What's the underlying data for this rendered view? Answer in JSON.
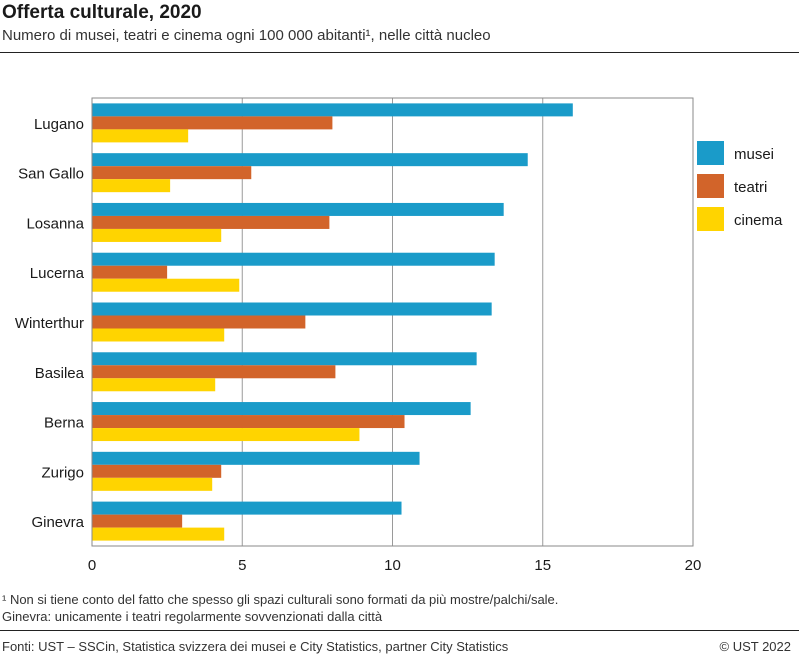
{
  "header": {
    "title": "Offerta culturale, 2020",
    "subtitle": "Numero di musei, teatri e cinema ogni 100 000 abitanti¹, nelle città nucleo"
  },
  "footnotes": {
    "note1": "¹ Non si tiene conto del fatto che spesso gli spazi culturali sono formati da più mostre/palchi/sale.",
    "note2": "Ginevra: unicamente i teatri regolarmente sovvenzionati dalla città"
  },
  "footer": {
    "source": "Fonti: UST – SSCin, Statistica svizzera dei musei e City Statistics, partner City Statistics",
    "copyright": "© UST 2022"
  },
  "colors": {
    "musei": "#1a9bc9",
    "teatri": "#d2642a",
    "cinema": "#ffd400"
  },
  "chart_data": {
    "type": "bar",
    "orientation": "horizontal",
    "title": "Offerta culturale, 2020",
    "xlabel": "",
    "ylabel": "",
    "xlim": [
      0,
      20
    ],
    "xticks": [
      0,
      5,
      10,
      15,
      20
    ],
    "grid": true,
    "legend": "right",
    "categories": [
      "Lugano",
      "San Gallo",
      "Losanna",
      "Lucerna",
      "Winterthur",
      "Basilea",
      "Berna",
      "Zurigo",
      "Ginevra"
    ],
    "series": [
      {
        "name": "musei",
        "values": [
          16.0,
          14.5,
          13.7,
          13.4,
          13.3,
          12.8,
          12.6,
          10.9,
          10.3
        ]
      },
      {
        "name": "teatri",
        "values": [
          8.0,
          5.3,
          7.9,
          2.5,
          7.1,
          8.1,
          10.4,
          4.3,
          3.0
        ]
      },
      {
        "name": "cinema",
        "values": [
          3.2,
          2.6,
          4.3,
          4.9,
          4.4,
          4.1,
          8.9,
          4.0,
          4.4
        ]
      }
    ]
  }
}
